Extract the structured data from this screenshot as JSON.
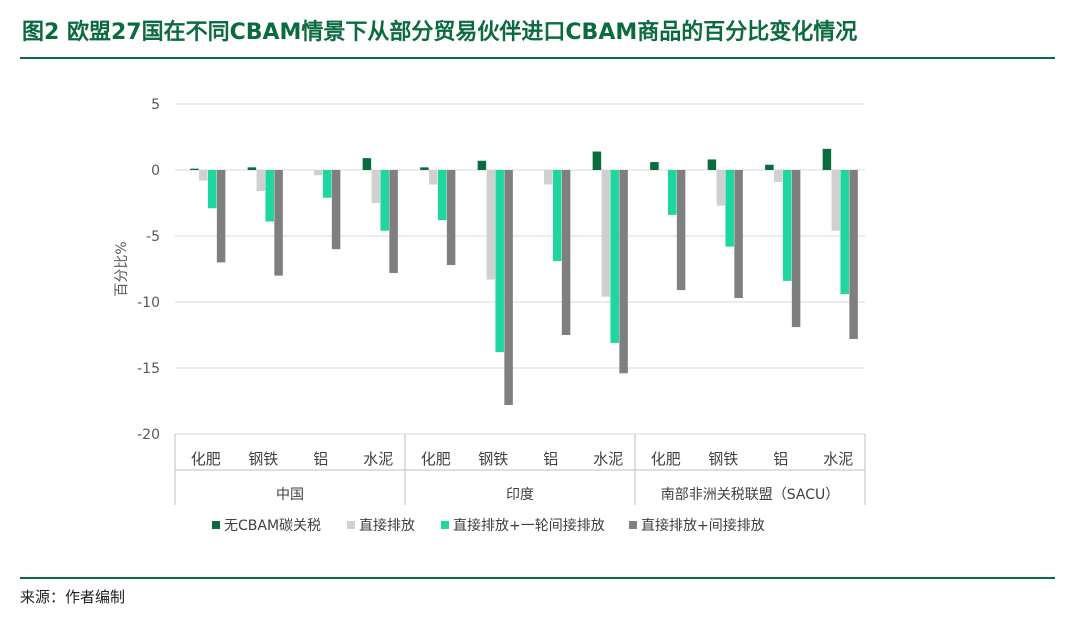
{
  "header": {
    "title": "图2 欧盟27国在不同CBAM情景下从部分贸易伙伴进口CBAM商品的百分比变化情况"
  },
  "footer": {
    "source": "来源：作者编制"
  },
  "colors": {
    "brand": "#0b6b3f",
    "series": [
      "#0b6b3f",
      "#d0d0d0",
      "#1fd6a1",
      "#7f7f7f"
    ]
  },
  "chart_data": {
    "type": "bar",
    "title": "",
    "ylabel": "百分比%",
    "xlabel": "",
    "ylim": [
      -20,
      5
    ],
    "yticks": [
      5,
      0,
      -5,
      -10,
      -15,
      -20
    ],
    "grid": true,
    "legend_position": "bottom",
    "groups": [
      {
        "name": "中国",
        "categories": [
          "化肥",
          "钢铁",
          "铝",
          "水泥"
        ]
      },
      {
        "name": "印度",
        "categories": [
          "化肥",
          "钢铁",
          "铝",
          "水泥"
        ]
      },
      {
        "name": "南部非洲关税联盟（SACU）",
        "categories": [
          "化肥",
          "钢铁",
          "铝",
          "水泥"
        ]
      }
    ],
    "series": [
      {
        "name": "无CBAM碳关税",
        "values": [
          0.1,
          0.2,
          0.0,
          0.9,
          0.2,
          0.7,
          0.0,
          1.4,
          0.6,
          0.8,
          0.4,
          1.6
        ]
      },
      {
        "name": "直接排放",
        "values": [
          -0.8,
          -1.6,
          -0.4,
          -2.5,
          -1.1,
          -8.3,
          -1.1,
          -9.6,
          0.0,
          -2.7,
          -0.9,
          -4.6
        ]
      },
      {
        "name": "直接排放+一轮间接排放",
        "values": [
          -2.9,
          -3.9,
          -2.1,
          -4.6,
          -3.8,
          -13.8,
          -6.9,
          -13.1,
          -3.4,
          -5.8,
          -8.4,
          -9.4
        ]
      },
      {
        "name": "直接排放+间接排放",
        "values": [
          -7.0,
          -8.0,
          -6.0,
          -7.8,
          -7.2,
          -17.8,
          -12.5,
          -15.4,
          -9.1,
          -9.7,
          -11.9,
          -12.8
        ]
      }
    ]
  }
}
